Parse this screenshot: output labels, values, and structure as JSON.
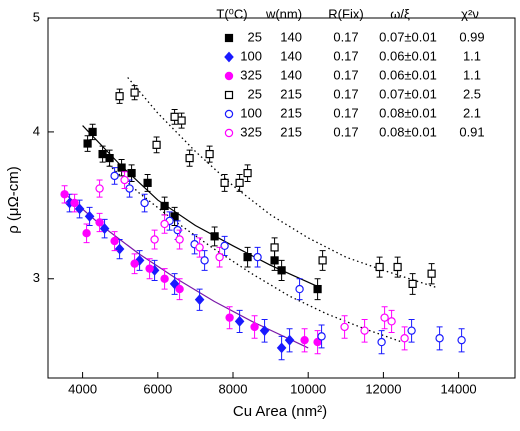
{
  "chart_data": {
    "type": "scatter",
    "x_label": "Cu Area (nm²)",
    "y_label": "ρ (μΩ-cm)",
    "xlim": [
      3080,
      15500
    ],
    "xticks": [
      4000,
      6000,
      8000,
      10000,
      12000,
      14000
    ],
    "ylim": [
      2.47,
      5
    ],
    "yticks": [
      3,
      4,
      5
    ],
    "y_log": true,
    "legend_headers": [
      "T(⁰C)",
      "w(nm)",
      "R(Fix)",
      "ω/ξ",
      "χ²ν"
    ],
    "series": [
      {
        "name": "25",
        "width": "140",
        "r": "0.17",
        "ratio": "0.07±0.01",
        "chi2": "0.99",
        "color": "#000000",
        "marker": "square",
        "filled": true,
        "error": 0.06,
        "x": [
          4133,
          4266,
          4532,
          4718,
          5037,
          5303,
          5729,
          6181,
          6447,
          7511,
          8388,
          9106,
          9293,
          10250
        ],
        "values": [
          3.91,
          4.0,
          3.83,
          3.8,
          3.73,
          3.69,
          3.62,
          3.46,
          3.39,
          3.26,
          3.13,
          3.11,
          3.05,
          2.94
        ]
      },
      {
        "name": "100",
        "width": "140",
        "r": "0.17",
        "ratio": "0.06±0.01",
        "chi2": "1.1",
        "color": "#1a1aff",
        "marker": "diamond",
        "filled": true,
        "error": 0.06,
        "x": [
          3654,
          3920,
          4186,
          4585,
          4984,
          5516,
          5915,
          6447,
          7112,
          8176,
          8840,
          9505,
          9293
        ],
        "values": [
          3.48,
          3.44,
          3.39,
          3.31,
          3.18,
          3.11,
          3.05,
          2.97,
          2.88,
          2.76,
          2.71,
          2.66,
          2.62
        ]
      },
      {
        "name": "325",
        "width": "140",
        "r": "0.17",
        "ratio": "0.06±0.01",
        "chi2": "1.1",
        "color": "#ff00ff",
        "marker": "circle",
        "filled": true,
        "error": 0.06,
        "x": [
          3521,
          3787,
          4106,
          4452,
          4851,
          5383,
          5782,
          6181,
          6580,
          7910,
          8574,
          9904,
          10250
        ],
        "values": [
          3.54,
          3.48,
          3.28,
          3.35,
          3.23,
          3.09,
          3.06,
          3.0,
          2.94,
          2.78,
          2.73,
          2.66,
          2.65
        ]
      },
      {
        "name": "25",
        "width": "215",
        "r": "0.17",
        "ratio": "0.07±0.01",
        "chi2": "2.5",
        "color": "#000000",
        "marker": "square",
        "filled": false,
        "error": 0.06,
        "x": [
          4984,
          5383,
          6447,
          6633,
          5968,
          6846,
          7378,
          7777,
          8176,
          8388,
          9106,
          10383,
          11899,
          12378,
          12777,
          13282
        ],
        "values": [
          4.29,
          4.32,
          4.12,
          4.09,
          3.9,
          3.8,
          3.83,
          3.62,
          3.62,
          3.69,
          3.19,
          3.11,
          3.07,
          3.07,
          2.97,
          3.03
        ]
      },
      {
        "name": "100",
        "width": "215",
        "r": "0.17",
        "ratio": "0.08±0.01",
        "chi2": "2.1",
        "color": "#1a1aff",
        "marker": "circle",
        "filled": false,
        "error": 0.06,
        "x": [
          4851,
          5250,
          5649,
          6314,
          6527,
          6979,
          7245,
          7777,
          8654,
          9771,
          10356,
          11952,
          12750,
          13495,
          14080
        ],
        "values": [
          3.67,
          3.58,
          3.48,
          3.36,
          3.3,
          3.21,
          3.11,
          3.2,
          3.13,
          2.94,
          2.68,
          2.65,
          2.71,
          2.67,
          2.66
        ]
      },
      {
        "name": "325",
        "width": "215",
        "r": "0.17",
        "ratio": "0.08±0.01",
        "chi2": "0.91",
        "color": "#ff00ff",
        "marker": "circle",
        "filled": false,
        "error": 0.06,
        "x": [
          4452,
          5117,
          5915,
          6181,
          6580,
          7112,
          7644,
          10968,
          11500,
          12032,
          12218,
          12564
        ],
        "values": [
          3.58,
          3.64,
          3.24,
          3.34,
          3.24,
          3.19,
          3.13,
          2.73,
          2.71,
          2.78,
          2.76,
          2.67
        ]
      }
    ],
    "fits": [
      {
        "color": "#000000",
        "dotted": false,
        "x": [
          4000,
          5000,
          6000,
          7000,
          8000,
          9000,
          10300
        ],
        "values": [
          4.05,
          3.75,
          3.5,
          3.33,
          3.2,
          3.08,
          2.95
        ]
      },
      {
        "color": "#7a1aa8",
        "dotted": false,
        "x": [
          3500,
          4500,
          5500,
          6500,
          7500,
          8500,
          10000
        ],
        "values": [
          3.55,
          3.33,
          3.15,
          3.0,
          2.87,
          2.76,
          2.62
        ]
      },
      {
        "color": "#000000",
        "dotted": true,
        "x": [
          5200,
          6000,
          7000,
          8000,
          9000,
          10000,
          11000,
          12000,
          13400
        ],
        "values": [
          4.45,
          4.15,
          3.85,
          3.6,
          3.4,
          3.25,
          3.13,
          3.05,
          2.95
        ]
      },
      {
        "color": "#000000",
        "dotted": true,
        "x": [
          4700,
          5500,
          6500,
          7500,
          8500,
          9500,
          10500,
          11500,
          12500
        ],
        "values": [
          3.75,
          3.55,
          3.35,
          3.18,
          3.03,
          2.9,
          2.8,
          2.72,
          2.65
        ]
      }
    ]
  }
}
